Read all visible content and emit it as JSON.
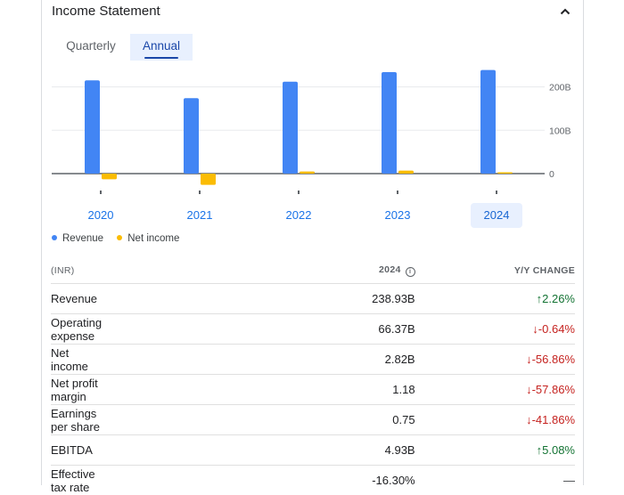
{
  "header": {
    "title": "Income Statement",
    "collapse_icon": "chevron-up-icon"
  },
  "tabs": [
    {
      "label": "Quarterly"
    },
    {
      "label": "Annual",
      "selected": true
    }
  ],
  "chart_data": {
    "type": "bar",
    "categories": [
      "2020",
      "2021",
      "2022",
      "2023",
      "2024"
    ],
    "selected_category": "2024",
    "series": [
      {
        "name": "Revenue",
        "color": "#4285f4",
        "values": [
          215,
          174,
          212,
          234,
          239
        ]
      },
      {
        "name": "Net income",
        "color": "#fbbc04",
        "values": [
          -13,
          -26,
          5,
          7,
          3
        ]
      }
    ],
    "y_ticks": [
      "200B",
      "100B",
      "0"
    ],
    "ylim": [
      -30,
      250
    ],
    "grid": true
  },
  "table": {
    "headers": {
      "label": "(INR)",
      "year": "2024",
      "change": "Y/Y CHANGE"
    },
    "rows": [
      {
        "label": "Revenue",
        "value": "238.93B",
        "change": "2.26%",
        "dir": "up"
      },
      {
        "label": "Operating expense",
        "value": "66.37B",
        "change": "-0.64%",
        "dir": "down"
      },
      {
        "label": "Net income",
        "value": "2.82B",
        "change": "-56.86%",
        "dir": "down"
      },
      {
        "label": "Net profit margin",
        "value": "1.18",
        "change": "-57.86%",
        "dir": "down"
      },
      {
        "label": "Earnings per share",
        "value": "0.75",
        "change": "-41.86%",
        "dir": "down"
      },
      {
        "label": "EBITDA",
        "value": "4.93B",
        "change": "5.08%",
        "dir": "up"
      },
      {
        "label": "Effective tax rate",
        "value": "-16.30%",
        "change": "—",
        "dir": "flat"
      }
    ]
  }
}
